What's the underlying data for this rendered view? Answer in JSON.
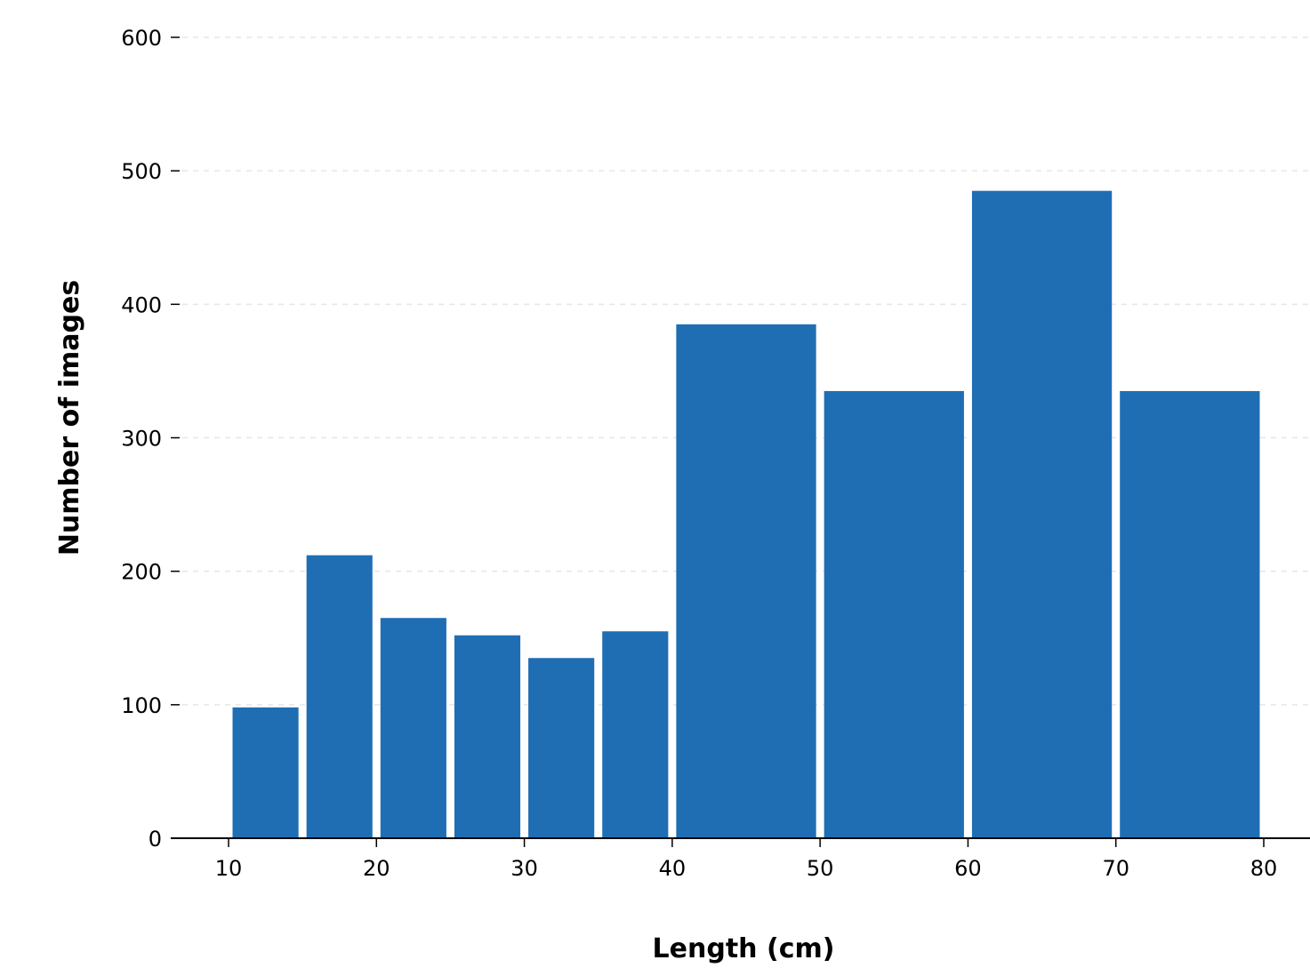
{
  "chart_data": {
    "type": "bar",
    "title": "",
    "xlabel": "Length (cm)",
    "ylabel": "Number of images",
    "xlim": [
      6,
      83
    ],
    "ylim": [
      0,
      600
    ],
    "x_ticks": [
      10,
      20,
      30,
      40,
      50,
      60,
      70,
      80
    ],
    "y_ticks": [
      0,
      100,
      200,
      300,
      400,
      500,
      600
    ],
    "grid": "horizontal dashed",
    "legend": "none",
    "bar_color": "#1f6eb4",
    "bins": [
      {
        "x_start": 10,
        "x_end": 15,
        "value": 98
      },
      {
        "x_start": 15,
        "x_end": 20,
        "value": 212
      },
      {
        "x_start": 20,
        "x_end": 25,
        "value": 165
      },
      {
        "x_start": 25,
        "x_end": 30,
        "value": 152
      },
      {
        "x_start": 30,
        "x_end": 35,
        "value": 135
      },
      {
        "x_start": 35,
        "x_end": 40,
        "value": 155
      },
      {
        "x_start": 40,
        "x_end": 50,
        "value": 385
      },
      {
        "x_start": 50,
        "x_end": 60,
        "value": 335
      },
      {
        "x_start": 60,
        "x_end": 70,
        "value": 485
      },
      {
        "x_start": 70,
        "x_end": 80,
        "value": 335
      }
    ]
  }
}
